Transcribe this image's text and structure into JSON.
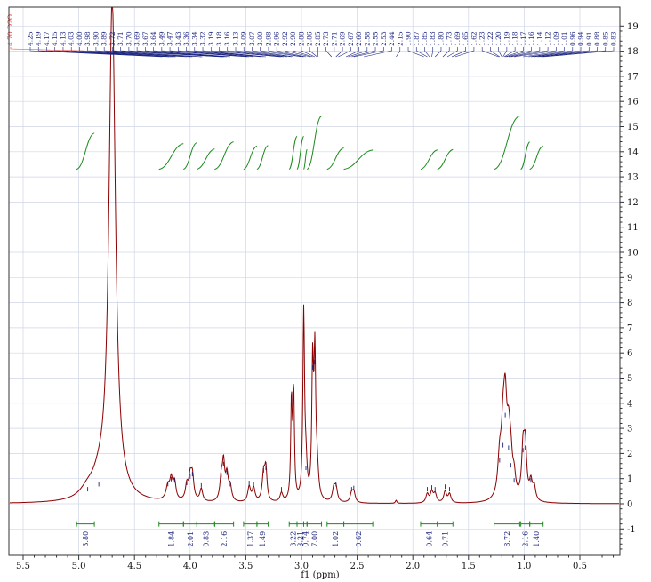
{
  "chart_data": {
    "type": "line",
    "title": "",
    "xlabel": "f1 (ppm)",
    "ylabel": "",
    "xlim": [
      5.6,
      0.25
    ],
    "ylim": [
      -1.9,
      19.6
    ],
    "x_ticks": [
      "5.5",
      "5.0",
      "4.5",
      "4.0",
      "3.5",
      "3.0",
      "2.5",
      "2.0",
      "1.5",
      "1.0",
      "0.5"
    ],
    "y_ticks": [
      "19",
      "18",
      "17",
      "16",
      "15",
      "14",
      "13",
      "12",
      "11",
      "10",
      "9",
      "8",
      "7",
      "6",
      "5",
      "4",
      "3",
      "2",
      "1",
      "0",
      "-1"
    ],
    "grid": true,
    "colors": {
      "spectrum": "#8b0000",
      "peak_labels": "#1a237e",
      "solvent_label": "#e53935",
      "integral": "#1b8a1b",
      "grid": "#cfd6e6"
    },
    "solvent_peak_label": "4.70 D2O",
    "peak_labels": [
      "4.25",
      "4.19",
      "4.17",
      "4.15",
      "4.13",
      "4.03",
      "4.00",
      "3.98",
      "3.90",
      "3.89",
      "3.72",
      "3.71",
      "3.70",
      "3.69",
      "3.67",
      "3.64",
      "3.49",
      "3.47",
      "3.43",
      "3.36",
      "3.34",
      "3.32",
      "3.19",
      "3.18",
      "3.16",
      "3.13",
      "3.09",
      "3.07",
      "3.00",
      "2.98",
      "2.96",
      "2.92",
      "2.90",
      "2.88",
      "2.86",
      "2.85",
      "2.73",
      "2.71",
      "2.69",
      "2.67",
      "2.60",
      "2.58",
      "2.55",
      "2.53",
      "2.44",
      "2.15",
      "1.90",
      "1.87",
      "1.85",
      "1.83",
      "1.80",
      "1.73",
      "1.69",
      "1.65",
      "1.62",
      "1.23",
      "1.22",
      "1.20",
      "1.19",
      "1.18",
      "1.17",
      "1.16",
      "1.14",
      "1.12",
      "1.09",
      "1.01",
      "0.96",
      "0.94",
      "0.91",
      "0.88",
      "0.85",
      "0.83"
    ],
    "integrals": [
      {
        "from": 5.02,
        "to": 4.86,
        "value": "3.80"
      },
      {
        "from": 4.28,
        "to": 4.06,
        "value": "1.84"
      },
      {
        "from": 4.06,
        "to": 3.94,
        "value": "2.01"
      },
      {
        "from": 3.94,
        "to": 3.78,
        "value": "0.83"
      },
      {
        "from": 3.78,
        "to": 3.61,
        "value": "2.16"
      },
      {
        "from": 3.52,
        "to": 3.4,
        "value": "1.37"
      },
      {
        "from": 3.4,
        "to": 3.3,
        "value": "1.49"
      },
      {
        "from": 3.11,
        "to": 3.04,
        "value": "3.22"
      },
      {
        "from": 3.04,
        "to": 2.98,
        "value": "3.21"
      },
      {
        "from": 2.98,
        "to": 2.95,
        "value": "0.74"
      },
      {
        "from": 2.95,
        "to": 2.82,
        "value": "7.00"
      },
      {
        "from": 2.77,
        "to": 2.62,
        "value": "1.02"
      },
      {
        "from": 2.62,
        "to": 2.36,
        "value": "0.62"
      },
      {
        "from": 1.93,
        "to": 1.78,
        "value": "0.64"
      },
      {
        "from": 1.78,
        "to": 1.64,
        "value": "0.71"
      },
      {
        "from": 1.27,
        "to": 1.04,
        "value": "8.72"
      },
      {
        "from": 1.03,
        "to": 0.95,
        "value": "2.16"
      },
      {
        "from": 0.95,
        "to": 0.83,
        "value": "1.40"
      }
    ],
    "peaks": [
      {
        "ppm": 4.7,
        "height": 20,
        "width": 0.035
      },
      {
        "ppm": 4.82,
        "height": 0.55,
        "width": 0.07
      },
      {
        "ppm": 4.92,
        "height": 0.35,
        "width": 0.08
      },
      {
        "ppm": 4.2,
        "height": 0.55,
        "width": 0.02
      },
      {
        "ppm": 4.17,
        "height": 0.75,
        "width": 0.015
      },
      {
        "ppm": 4.14,
        "height": 0.7,
        "width": 0.015
      },
      {
        "ppm": 4.03,
        "height": 0.6,
        "width": 0.015
      },
      {
        "ppm": 4.0,
        "height": 0.85,
        "width": 0.015
      },
      {
        "ppm": 3.98,
        "height": 0.95,
        "width": 0.015
      },
      {
        "ppm": 3.9,
        "height": 0.5,
        "width": 0.015
      },
      {
        "ppm": 3.72,
        "height": 0.9,
        "width": 0.015
      },
      {
        "ppm": 3.7,
        "height": 1.35,
        "width": 0.012
      },
      {
        "ppm": 3.67,
        "height": 1.0,
        "width": 0.015
      },
      {
        "ppm": 3.64,
        "height": 0.55,
        "width": 0.015
      },
      {
        "ppm": 3.47,
        "height": 0.6,
        "width": 0.015
      },
      {
        "ppm": 3.43,
        "height": 0.55,
        "width": 0.015
      },
      {
        "ppm": 3.34,
        "height": 1.1,
        "width": 0.015
      },
      {
        "ppm": 3.32,
        "height": 1.2,
        "width": 0.012
      },
      {
        "ppm": 3.18,
        "height": 0.35,
        "width": 0.015
      },
      {
        "ppm": 3.09,
        "height": 3.9,
        "width": 0.008
      },
      {
        "ppm": 3.07,
        "height": 4.2,
        "width": 0.008
      },
      {
        "ppm": 2.98,
        "height": 7.4,
        "width": 0.009
      },
      {
        "ppm": 2.96,
        "height": 1.2,
        "width": 0.012
      },
      {
        "ppm": 2.9,
        "height": 5.2,
        "width": 0.009
      },
      {
        "ppm": 2.88,
        "height": 5.4,
        "width": 0.009
      },
      {
        "ppm": 2.86,
        "height": 1.2,
        "width": 0.015
      },
      {
        "ppm": 2.71,
        "height": 0.5,
        "width": 0.015
      },
      {
        "ppm": 2.69,
        "height": 0.55,
        "width": 0.015
      },
      {
        "ppm": 2.55,
        "height": 0.35,
        "width": 0.015
      },
      {
        "ppm": 2.53,
        "height": 0.4,
        "width": 0.015
      },
      {
        "ppm": 2.15,
        "height": 0.12,
        "width": 0.008
      },
      {
        "ppm": 1.87,
        "height": 0.35,
        "width": 0.015
      },
      {
        "ppm": 1.83,
        "height": 0.42,
        "width": 0.015
      },
      {
        "ppm": 1.8,
        "height": 0.35,
        "width": 0.015
      },
      {
        "ppm": 1.71,
        "height": 0.45,
        "width": 0.015
      },
      {
        "ppm": 1.67,
        "height": 0.35,
        "width": 0.015
      },
      {
        "ppm": 1.22,
        "height": 1.5,
        "width": 0.02
      },
      {
        "ppm": 1.19,
        "height": 2.1,
        "width": 0.018
      },
      {
        "ppm": 1.17,
        "height": 3.3,
        "width": 0.018
      },
      {
        "ppm": 1.14,
        "height": 2.0,
        "width": 0.018
      },
      {
        "ppm": 1.12,
        "height": 1.3,
        "width": 0.018
      },
      {
        "ppm": 1.09,
        "height": 0.7,
        "width": 0.015
      },
      {
        "ppm": 1.01,
        "height": 1.9,
        "width": 0.015
      },
      {
        "ppm": 0.99,
        "height": 2.0,
        "width": 0.015
      },
      {
        "ppm": 0.94,
        "height": 0.7,
        "width": 0.015
      },
      {
        "ppm": 0.91,
        "height": 0.55,
        "width": 0.015
      }
    ]
  }
}
